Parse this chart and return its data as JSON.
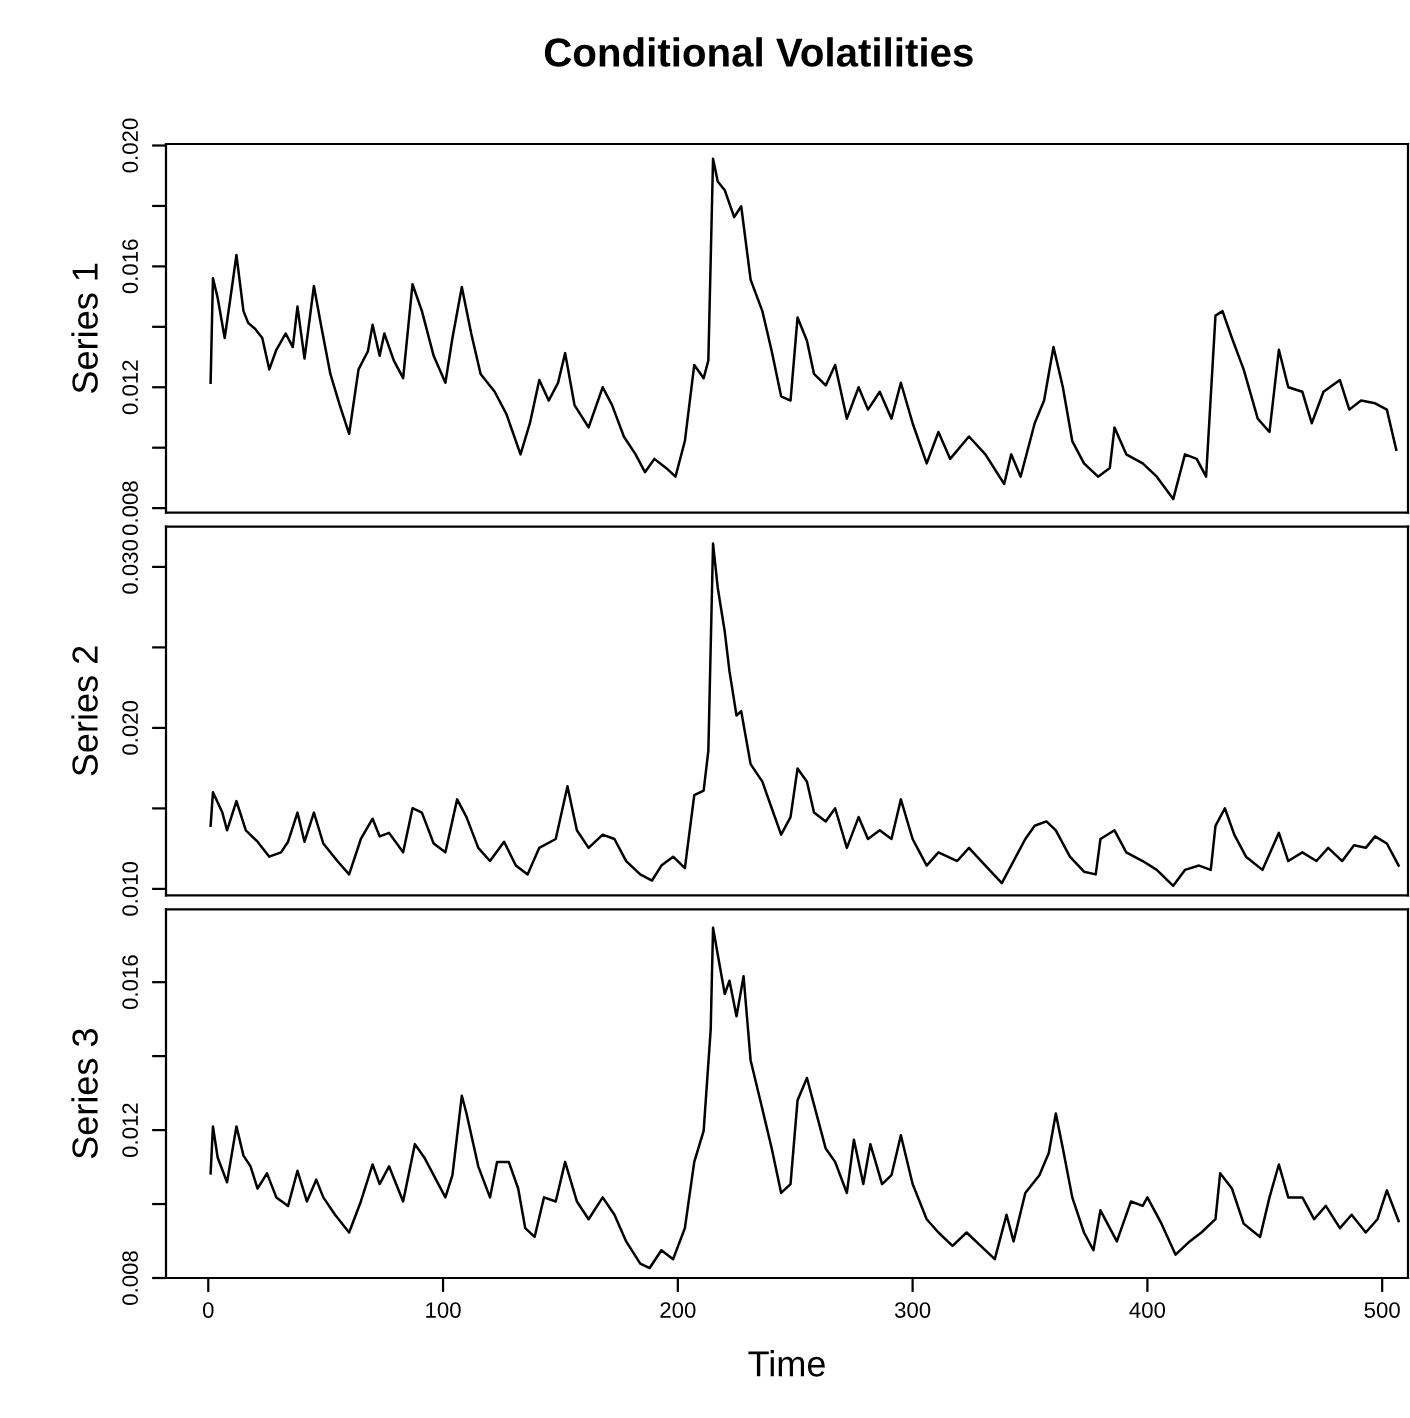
{
  "chart_data": [
    {
      "type": "line",
      "title": "Conditional Volatilities",
      "ylabel": "Series 1",
      "xlim": [
        -18,
        511
      ],
      "ylim": [
        0.00785,
        0.02005
      ],
      "yticks": [
        0.008,
        {
          "value": 0.01,
          "label": null
        },
        0.012,
        {
          "value": 0.014,
          "label": null
        },
        0.016,
        {
          "value": 0.018,
          "label": null
        },
        {
          "value": 0.02,
          "label": "0.020"
        }
      ],
      "tick_labels": "y",
      "series": [
        {
          "color": "#000000",
          "x": [
            1,
            2,
            4,
            7,
            10,
            12,
            15,
            17,
            20,
            23,
            26,
            29,
            33,
            36,
            38,
            41,
            45,
            48,
            52,
            56,
            60,
            64,
            68,
            70,
            73,
            75,
            79,
            83,
            87,
            91,
            96,
            101,
            104,
            108,
            112,
            116,
            122,
            127,
            133,
            137,
            141,
            145,
            149,
            152,
            156,
            162,
            168,
            172,
            177,
            182,
            186,
            190,
            195,
            199,
            203,
            207,
            211,
            213,
            215,
            217,
            220,
            224,
            227,
            231,
            236,
            240,
            244,
            248,
            251,
            255,
            258,
            263,
            267,
            272,
            277,
            281,
            286,
            291,
            295,
            300,
            306,
            311,
            316,
            324,
            331,
            339,
            342,
            346,
            352,
            356,
            360,
            364,
            368,
            373,
            379,
            384,
            386,
            391,
            398,
            404,
            411,
            416,
            421,
            425,
            429,
            432,
            436,
            441,
            447,
            452,
            456,
            460,
            466,
            470,
            475,
            482,
            486,
            491,
            497,
            502,
            506
          ],
          "values": [
            0.01215,
            0.01561,
            0.01496,
            0.01363,
            0.01526,
            0.01638,
            0.01452,
            0.01413,
            0.01393,
            0.01363,
            0.01259,
            0.01324,
            0.01378,
            0.01333,
            0.01467,
            0.01295,
            0.01535,
            0.01407,
            0.01244,
            0.01141,
            0.01046,
            0.01259,
            0.01319,
            0.01407,
            0.01304,
            0.01378,
            0.01289,
            0.0123,
            0.01541,
            0.01452,
            0.01304,
            0.01215,
            0.01363,
            0.01532,
            0.01378,
            0.01244,
            0.01185,
            0.01111,
            0.00978,
            0.01081,
            0.01224,
            0.01156,
            0.01215,
            0.01313,
            0.01141,
            0.01067,
            0.012,
            0.01141,
            0.01037,
            0.00978,
            0.00919,
            0.00963,
            0.00933,
            0.00904,
            0.01022,
            0.01274,
            0.0123,
            0.01289,
            0.01956,
            0.01881,
            0.01852,
            0.01763,
            0.01799,
            0.01556,
            0.01452,
            0.01319,
            0.0117,
            0.01156,
            0.01431,
            0.01354,
            0.01244,
            0.01206,
            0.01274,
            0.01096,
            0.012,
            0.01126,
            0.01185,
            0.01096,
            0.01215,
            0.01081,
            0.00948,
            0.01052,
            0.00963,
            0.01037,
            0.00978,
            0.0088,
            0.00978,
            0.00904,
            0.01081,
            0.01156,
            0.01333,
            0.012,
            0.01022,
            0.00948,
            0.00904,
            0.00933,
            0.01067,
            0.00978,
            0.00948,
            0.00904,
            0.0083,
            0.00978,
            0.00963,
            0.00904,
            0.01437,
            0.01452,
            0.01363,
            0.01259,
            0.01096,
            0.01052,
            0.01324,
            0.012,
            0.01185,
            0.01081,
            0.01185,
            0.01224,
            0.01126,
            0.01156,
            0.01147,
            0.01126,
            0.00993
          ]
        }
      ]
    },
    {
      "type": "line",
      "ylabel": "Series 2",
      "xlim": [
        -18,
        511
      ],
      "ylim": [
        0.0096,
        0.0325
      ],
      "yticks": [
        {
          "value": 0.01,
          "label": "0.010"
        },
        {
          "value": 0.015,
          "label": null
        },
        {
          "value": 0.02,
          "label": "0.020"
        },
        {
          "value": 0.025,
          "label": null
        },
        {
          "value": 0.03,
          "label": "0.030"
        }
      ],
      "tick_labels": "y",
      "series": [
        {
          "color": "#000000",
          "x": [
            1,
            2,
            6,
            8,
            12,
            16,
            21,
            26,
            31,
            34,
            38,
            41,
            45,
            49,
            55,
            60,
            65,
            70,
            73,
            77,
            83,
            87,
            91,
            96,
            101,
            106,
            110,
            115,
            120,
            126,
            131,
            136,
            141,
            148,
            153,
            157,
            162,
            168,
            173,
            178,
            184,
            189,
            193,
            198,
            203,
            207,
            211,
            213,
            215,
            217,
            220,
            222,
            225,
            227,
            231,
            236,
            240,
            244,
            248,
            251,
            255,
            258,
            263,
            267,
            272,
            277,
            281,
            286,
            291,
            295,
            300,
            306,
            311,
            319,
            324,
            331,
            338,
            343,
            348,
            352,
            357,
            361,
            367,
            373,
            378,
            380,
            386,
            391,
            398,
            404,
            411,
            416,
            422,
            427,
            429,
            433,
            437,
            442,
            449,
            456,
            460,
            466,
            472,
            477,
            483,
            488,
            493,
            497,
            502,
            507
          ],
          "values": [
            0.01392,
            0.016,
            0.01474,
            0.01364,
            0.01545,
            0.01364,
            0.01293,
            0.012,
            0.01227,
            0.01293,
            0.01474,
            0.01293,
            0.01474,
            0.01282,
            0.01173,
            0.0109,
            0.0131,
            0.01436,
            0.01326,
            0.01348,
            0.01227,
            0.01501,
            0.01474,
            0.01282,
            0.01227,
            0.01556,
            0.01446,
            0.01255,
            0.01173,
            0.01293,
            0.01145,
            0.0109,
            0.01255,
            0.0131,
            0.01638,
            0.01364,
            0.01255,
            0.01337,
            0.0131,
            0.01173,
            0.0109,
            0.01052,
            0.01145,
            0.012,
            0.01129,
            0.01583,
            0.01611,
            0.01858,
            0.03145,
            0.02871,
            0.02597,
            0.02351,
            0.02077,
            0.02104,
            0.01775,
            0.01666,
            0.01501,
            0.01337,
            0.01446,
            0.01748,
            0.01666,
            0.01474,
            0.01419,
            0.01501,
            0.01255,
            0.01446,
            0.0131,
            0.01364,
            0.0131,
            0.01556,
            0.0131,
            0.01145,
            0.01227,
            0.01173,
            0.01255,
            0.01145,
            0.01036,
            0.01173,
            0.0131,
            0.01392,
            0.01419,
            0.01364,
            0.012,
            0.01107,
            0.0109,
            0.0131,
            0.01364,
            0.01227,
            0.01173,
            0.01118,
            0.01019,
            0.01118,
            0.01145,
            0.01118,
            0.01392,
            0.01501,
            0.01337,
            0.012,
            0.01118,
            0.01348,
            0.01173,
            0.01227,
            0.01173,
            0.01255,
            0.01173,
            0.01271,
            0.01255,
            0.01326,
            0.01282,
            0.01145
          ]
        }
      ]
    },
    {
      "type": "line",
      "ylabel": "Series 3",
      "xlabel": "Time",
      "xlim": [
        -18,
        511
      ],
      "xticks": [
        0,
        100,
        200,
        300,
        400,
        500
      ],
      "ylim": [
        0.008,
        0.01797
      ],
      "yticks": [
        0.008,
        {
          "value": 0.01,
          "label": null
        },
        0.012,
        {
          "value": 0.014,
          "label": null
        },
        0.016
      ],
      "series": [
        {
          "color": "#000000",
          "x": [
            1,
            2,
            4,
            8,
            12,
            15,
            18,
            21,
            25,
            29,
            34,
            38,
            42,
            46,
            49,
            54,
            60,
            65,
            70,
            73,
            77,
            83,
            88,
            92,
            96,
            101,
            104,
            108,
            110,
            115,
            120,
            123,
            128,
            132,
            135,
            139,
            143,
            148,
            152,
            157,
            162,
            168,
            173,
            178,
            184,
            188,
            193,
            198,
            203,
            207,
            211,
            214,
            215,
            217,
            220,
            222,
            225,
            228,
            231,
            236,
            240,
            244,
            248,
            251,
            255,
            258,
            263,
            267,
            272,
            275,
            279,
            282,
            287,
            291,
            295,
            300,
            306,
            311,
            317,
            323,
            329,
            335,
            340,
            343,
            348,
            354,
            358,
            361,
            364,
            368,
            373,
            377,
            380,
            387,
            393,
            398,
            400,
            406,
            412,
            418,
            423,
            429,
            431,
            436,
            441,
            448,
            452,
            456,
            460,
            466,
            471,
            476,
            482,
            487,
            493,
            498,
            502,
            507
          ],
          "values": [
            0.01083,
            0.0121,
            0.01126,
            0.01059,
            0.0121,
            0.01131,
            0.01102,
            0.01042,
            0.01083,
            0.01018,
            0.00995,
            0.0109,
            0.01007,
            0.01066,
            0.01018,
            0.00971,
            0.00923,
            0.01007,
            0.01107,
            0.01054,
            0.01102,
            0.01007,
            0.01162,
            0.01126,
            0.01078,
            0.01018,
            0.01078,
            0.01293,
            0.01245,
            0.01102,
            0.01018,
            0.01114,
            0.01114,
            0.01042,
            0.00935,
            0.00911,
            0.01018,
            0.01007,
            0.01114,
            0.01007,
            0.00959,
            0.01018,
            0.00971,
            0.00899,
            0.00839,
            0.00827,
            0.00875,
            0.00851,
            0.00935,
            0.01114,
            0.01198,
            0.01472,
            0.01747,
            0.01675,
            0.01568,
            0.01604,
            0.01508,
            0.01616,
            0.01389,
            0.01257,
            0.0115,
            0.0103,
            0.01054,
            0.01281,
            0.01341,
            0.01269,
            0.0115,
            0.01114,
            0.0103,
            0.01174,
            0.01054,
            0.01162,
            0.01054,
            0.01078,
            0.01186,
            0.01054,
            0.00959,
            0.00923,
            0.00887,
            0.00923,
            0.00887,
            0.00851,
            0.00971,
            0.00899,
            0.0103,
            0.01078,
            0.01138,
            0.01245,
            0.0115,
            0.01018,
            0.00923,
            0.00875,
            0.00983,
            0.00899,
            0.01007,
            0.00995,
            0.01018,
            0.00947,
            0.00863,
            0.00899,
            0.00923,
            0.00959,
            0.01083,
            0.01042,
            0.00947,
            0.00911,
            0.01018,
            0.01107,
            0.01018,
            0.01018,
            0.00959,
            0.00995,
            0.00935,
            0.00971,
            0.00923,
            0.00959,
            0.01037,
            0.00954
          ]
        }
      ]
    }
  ]
}
